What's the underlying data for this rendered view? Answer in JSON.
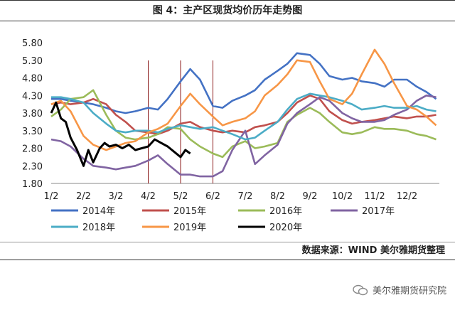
{
  "header": {
    "title": "图 4：主产区现货均价历年走势图"
  },
  "footer": {
    "source": "数据来源：WIND 美尔雅期货整理",
    "watermark": "美尔雅期货研究院"
  },
  "chart_data": {
    "type": "line",
    "title": "图 4：主产区现货均价历年走势图",
    "xlabel": "",
    "ylabel": "",
    "ylim": [
      1.8,
      5.8
    ],
    "yticks": [
      1.8,
      2.3,
      2.8,
      3.3,
      3.8,
      4.3,
      4.8,
      5.3,
      5.8
    ],
    "ytick_labels": [
      "1.80",
      "2.30",
      "2.80",
      "3.30",
      "3.80",
      "4.30",
      "4.80",
      "5.30",
      "5.80"
    ],
    "x_months": [
      "1/2",
      "2/2",
      "3/2",
      "4/2",
      "5/2",
      "6/2",
      "7/2",
      "8/2",
      "9/2",
      "10/2",
      "11/2",
      "12/2"
    ],
    "grid": false,
    "legend_position": "bottom",
    "vertical_markers": [
      "4/2",
      "5/2",
      "6/2"
    ],
    "series": [
      {
        "name": "2014年",
        "color": "#4472c4",
        "x": [
          1,
          1.3,
          1.6,
          2,
          2.3,
          2.7,
          3,
          3.3,
          3.6,
          4,
          4.3,
          4.6,
          5,
          5.3,
          5.6,
          6,
          6.3,
          6.6,
          7,
          7.3,
          7.6,
          8,
          8.3,
          8.6,
          9,
          9.3,
          9.6,
          10,
          10.3,
          10.6,
          11,
          11.3,
          11.6,
          12,
          12.3,
          12.6,
          12.9
        ],
        "y": [
          4.2,
          4.2,
          4.15,
          4.1,
          4.05,
          3.95,
          3.85,
          3.8,
          3.85,
          3.95,
          3.9,
          4.2,
          4.7,
          5.05,
          4.75,
          4.0,
          3.95,
          4.15,
          4.3,
          4.45,
          4.75,
          5.0,
          5.2,
          5.5,
          5.45,
          5.2,
          4.85,
          4.75,
          4.8,
          4.7,
          4.65,
          4.55,
          4.75,
          4.75,
          4.55,
          4.4,
          4.2
        ]
      },
      {
        "name": "2015年",
        "color": "#c0504d",
        "x": [
          1,
          1.3,
          1.6,
          2,
          2.3,
          2.7,
          3,
          3.3,
          3.6,
          4,
          4.3,
          4.6,
          5,
          5.3,
          5.6,
          6,
          6.3,
          6.6,
          7,
          7.3,
          7.6,
          8,
          8.3,
          8.6,
          9,
          9.3,
          9.6,
          10,
          10.3,
          10.6,
          11,
          11.3,
          11.6,
          12,
          12.3,
          12.6,
          12.9
        ],
        "y": [
          4.05,
          4.1,
          4.05,
          4.1,
          4.2,
          4.05,
          3.75,
          3.55,
          3.3,
          3.25,
          3.2,
          3.3,
          3.5,
          3.55,
          3.4,
          3.3,
          3.25,
          3.3,
          3.25,
          3.4,
          3.45,
          3.55,
          3.8,
          4.1,
          4.3,
          4.2,
          3.85,
          3.6,
          3.5,
          3.55,
          3.6,
          3.65,
          3.7,
          3.65,
          3.7,
          3.7,
          3.75
        ]
      },
      {
        "name": "2016年",
        "color": "#9bbb59",
        "x": [
          1,
          1.3,
          1.6,
          2,
          2.3,
          2.7,
          3,
          3.3,
          3.6,
          4,
          4.3,
          4.6,
          5,
          5.3,
          5.6,
          6,
          6.3,
          6.6,
          7,
          7.3,
          7.6,
          8,
          8.3,
          8.6,
          9,
          9.3,
          9.6,
          10,
          10.3,
          10.6,
          11,
          11.3,
          11.6,
          12,
          12.3,
          12.6,
          12.9
        ],
        "y": [
          3.7,
          3.9,
          4.2,
          4.25,
          4.45,
          3.75,
          3.3,
          3.1,
          3.05,
          3.1,
          3.2,
          3.4,
          3.35,
          3.05,
          2.85,
          2.65,
          2.55,
          2.85,
          3.0,
          2.8,
          2.85,
          2.95,
          3.55,
          3.75,
          3.95,
          3.8,
          3.55,
          3.25,
          3.2,
          3.25,
          3.4,
          3.35,
          3.35,
          3.3,
          3.2,
          3.15,
          3.05
        ]
      },
      {
        "name": "2017年",
        "color": "#8064a2",
        "x": [
          1,
          1.3,
          1.6,
          2,
          2.3,
          2.7,
          3,
          3.3,
          3.6,
          4,
          4.3,
          4.6,
          5,
          5.3,
          5.6,
          6,
          6.3,
          6.6,
          7,
          7.3,
          7.6,
          8,
          8.3,
          8.6,
          9,
          9.3,
          9.6,
          10,
          10.3,
          10.6,
          11,
          11.3,
          11.6,
          12,
          12.3,
          12.6,
          12.9
        ],
        "y": [
          3.05,
          3.0,
          2.85,
          2.5,
          2.3,
          2.25,
          2.2,
          2.25,
          2.3,
          2.45,
          2.6,
          2.35,
          2.05,
          2.05,
          2.0,
          2.0,
          2.15,
          2.75,
          3.3,
          2.35,
          2.6,
          2.9,
          3.5,
          3.8,
          4.05,
          4.25,
          4.15,
          3.8,
          3.65,
          3.55,
          3.55,
          3.6,
          3.75,
          3.9,
          4.15,
          4.3,
          4.25
        ]
      },
      {
        "name": "2018年",
        "color": "#4bacc6",
        "x": [
          1,
          1.3,
          1.6,
          2,
          2.3,
          2.7,
          3,
          3.3,
          3.6,
          4,
          4.3,
          4.6,
          5,
          5.3,
          5.6,
          6,
          6.3,
          6.6,
          7,
          7.3,
          7.6,
          8,
          8.3,
          8.6,
          9,
          9.3,
          9.6,
          10,
          10.3,
          10.6,
          11,
          11.3,
          11.6,
          12,
          12.3,
          12.6,
          12.9
        ],
        "y": [
          4.25,
          4.25,
          4.2,
          4.1,
          3.8,
          3.5,
          3.3,
          3.25,
          3.3,
          3.3,
          3.25,
          3.35,
          3.45,
          3.4,
          3.35,
          3.4,
          3.3,
          3.2,
          3.05,
          3.1,
          3.3,
          3.55,
          3.9,
          4.2,
          4.35,
          4.3,
          4.25,
          4.15,
          4.05,
          3.9,
          3.95,
          4.0,
          3.95,
          3.95,
          4.0,
          3.9,
          3.85
        ]
      },
      {
        "name": "2019年",
        "color": "#f79646",
        "x": [
          1,
          1.3,
          1.6,
          2,
          2.3,
          2.7,
          3,
          3.3,
          3.6,
          4,
          4.3,
          4.6,
          5,
          5.3,
          5.6,
          6,
          6.3,
          6.6,
          7,
          7.3,
          7.6,
          8,
          8.3,
          8.6,
          9,
          9.3,
          9.6,
          10,
          10.3,
          10.6,
          11,
          11.3,
          11.6,
          12,
          12.3,
          12.6,
          12.9
        ],
        "y": [
          4.05,
          4.15,
          3.85,
          3.15,
          2.9,
          2.75,
          2.85,
          2.95,
          3.0,
          3.25,
          3.35,
          3.5,
          4.0,
          4.35,
          4.05,
          3.7,
          3.45,
          3.55,
          3.65,
          3.85,
          4.3,
          4.6,
          4.9,
          5.3,
          5.25,
          4.7,
          4.2,
          4.05,
          4.35,
          4.9,
          5.6,
          5.2,
          4.65,
          4.0,
          3.9,
          3.7,
          3.45
        ]
      },
      {
        "name": "2020年",
        "color": "#000000",
        "x": [
          1,
          1.15,
          1.3,
          1.45,
          1.6,
          1.8,
          2,
          2.15,
          2.3,
          2.5,
          2.65,
          2.8,
          3,
          3.2,
          3.4,
          3.6,
          3.8,
          4,
          4.2,
          4.4,
          4.6,
          4.8,
          5,
          5.15,
          5.3
        ],
        "y": [
          3.8,
          4.1,
          3.65,
          3.55,
          3.1,
          2.75,
          2.3,
          2.75,
          2.4,
          2.8,
          2.95,
          2.85,
          2.9,
          2.8,
          2.9,
          2.75,
          2.8,
          2.85,
          3.05,
          2.95,
          2.85,
          2.7,
          2.55,
          2.75,
          2.65
        ]
      }
    ]
  }
}
